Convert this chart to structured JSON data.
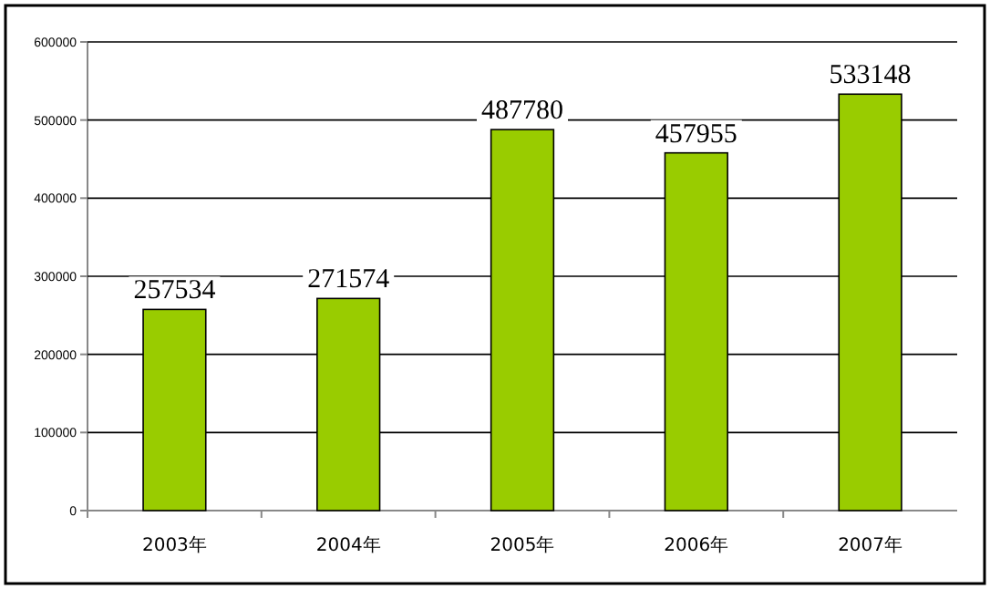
{
  "chart_data": {
    "type": "bar",
    "categories": [
      "2003年",
      "2004年",
      "2005年",
      "2006年",
      "2007年"
    ],
    "values": [
      257534,
      271574,
      487780,
      457955,
      533148
    ],
    "color": "#99cc00",
    "ylim": [
      0,
      600000
    ],
    "yticks": [
      0,
      100000,
      200000,
      300000,
      400000,
      500000,
      600000
    ],
    "grid": "y",
    "data_labels": true
  }
}
